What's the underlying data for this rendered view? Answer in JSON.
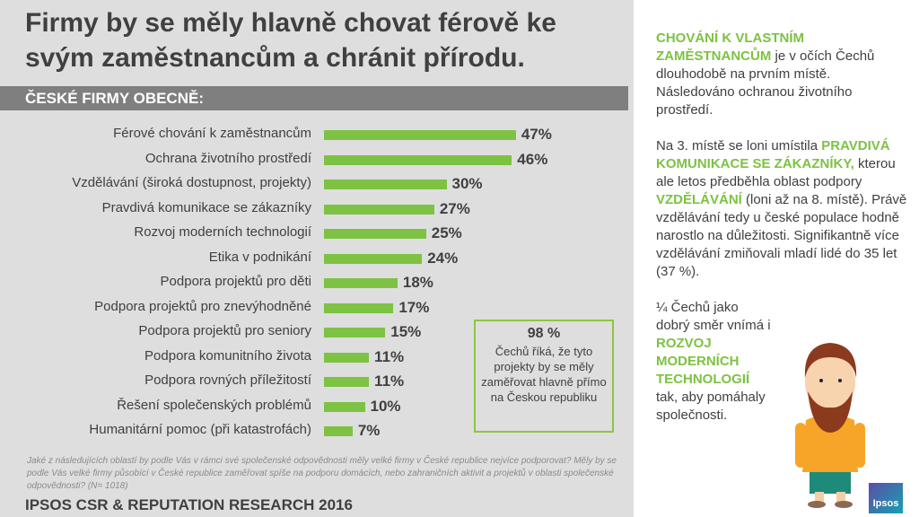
{
  "title": "Firmy by se měly hlavně chovat férově ke svým zaměstnancům a chránit přírodu.",
  "section": "ČESKÉ FIRMY OBECNĚ:",
  "chart_data": {
    "type": "bar",
    "orientation": "horizontal",
    "bar_color": "#7dc242",
    "categories": [
      "Férové chování k zaměstnancům",
      "Ochrana životního prostředí",
      "Vzdělávání (široká dostupnost, projekty)",
      "Pravdivá komunikace se zákazníky",
      "Rozvoj moderních technologií",
      "Etika v podnikání",
      "Podpora projektů pro děti",
      "Podpora projektů pro znevýhodněné",
      "Podpora projektů pro seniory",
      "Podpora komunitního života",
      "Podpora rovných příležitostí",
      "Řešení společenských problémů",
      "Humanitární pomoc (při katastrofách)"
    ],
    "values": [
      47,
      46,
      30,
      27,
      25,
      24,
      18,
      17,
      15,
      11,
      11,
      10,
      7
    ],
    "value_labels": [
      "47%",
      "46%",
      "30%",
      "27%",
      "25%",
      "24%",
      "18%",
      "17%",
      "15%",
      "11%",
      "11%",
      "10%",
      "7%"
    ]
  },
  "callout": {
    "value": "98 %",
    "text": "Čechů říká, že tyto projekty by se měly zaměřovat hlavně přímo na Českou republiku"
  },
  "footnote": "Jaké z následujících oblastí by podle Vás v rámci své společenské odpovědnosti měly velké firmy v České republice  nejvíce podporovat? Měly by se podle Vás velké firmy působící v České republice zaměřovat spíše na podporu  domácích, nebo zahraničních aktivit a projektů v oblasti společenské odpovědnosti? (N= 1018)",
  "source": "IPSOS CSR & REPUTATION RESEARCH 2016",
  "right": {
    "p1a": "CHOVÁNÍ K VLASTNÍM ZAMĚSTNANCŮM",
    "p1b": " je v očích Čechů dlouhodobě na prvním místě. Následováno ochranou životního prostředí.",
    "p2a": "Na 3. místě se loni umístila ",
    "p2b": "PRAVDIVÁ KOMUNIKACE SE ZÁKAZNÍKY,",
    "p2c": " kterou ale letos předběhla oblast podpory ",
    "p2d": "VZDĚLÁVÁNÍ",
    "p2e": " (loni až na 8. místě). Právě vzdělávání tedy u české populace hodně narostlo na důležitosti. Signifikantně více vzdělávání zmiňovali mladí lidé do 35 let (37 %).",
    "p3a": "¼ Čechů jako dobrý směr vnímá i ",
    "p3b": "ROZVOJ MODERNÍCH TECHNOLOGIÍ",
    "p3c": " tak, aby pomáhaly společnosti."
  },
  "logo": "Ipsos",
  "accent": "#7dc242"
}
